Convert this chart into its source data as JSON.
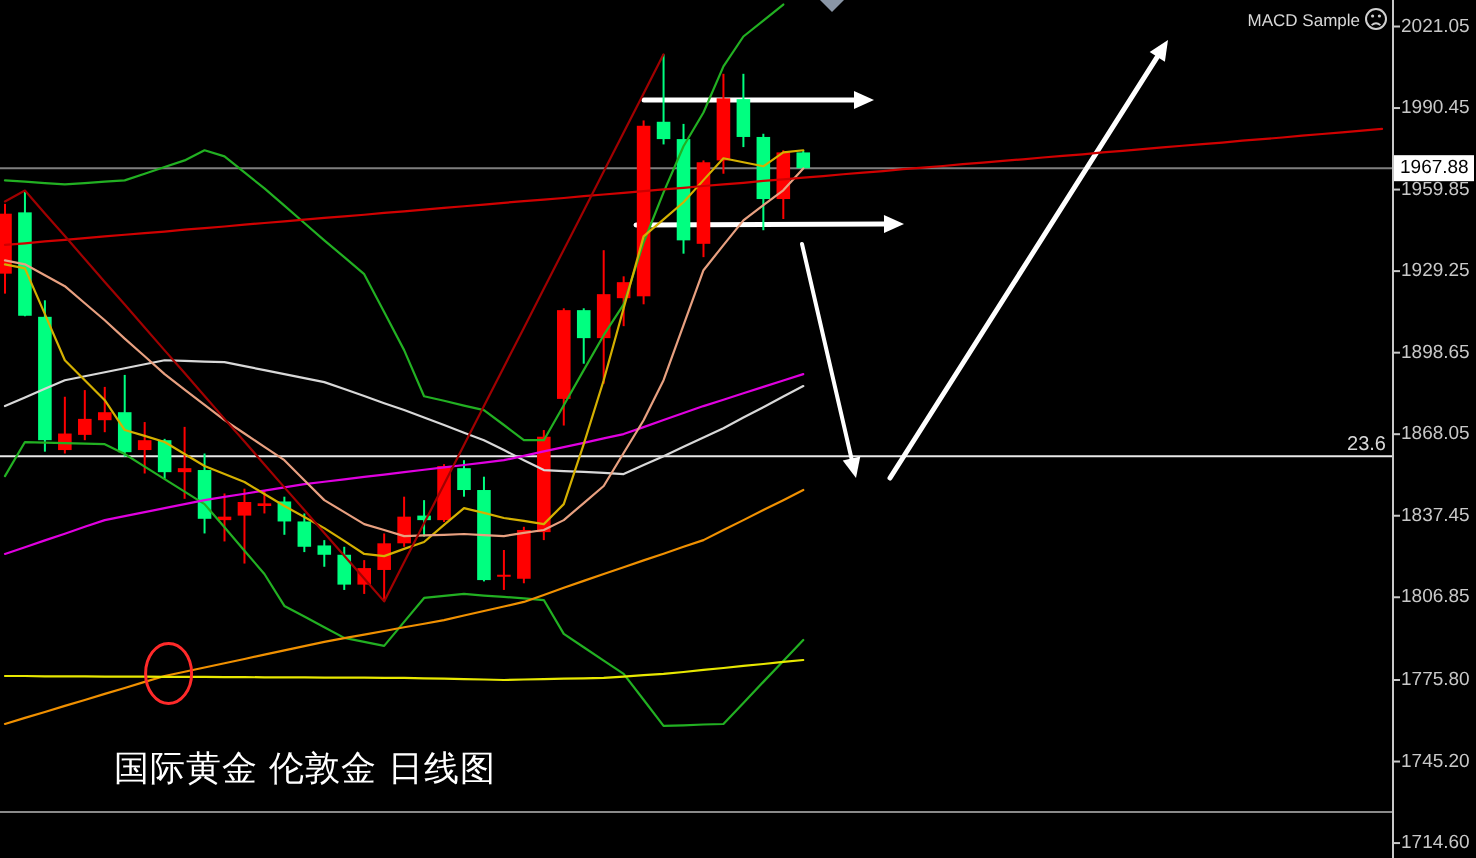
{
  "chart_data": {
    "type": "candlestick",
    "title": "国际黄金 伦敦金 日线图",
    "categories": [
      null,
      null,
      null,
      null,
      null,
      null,
      null,
      null,
      null,
      null,
      null,
      null,
      null,
      null,
      null,
      null,
      null,
      null,
      null,
      null,
      null,
      null,
      null,
      null,
      null,
      null,
      null,
      null,
      null,
      null,
      null,
      null,
      null,
      null,
      null,
      null,
      null,
      null,
      null,
      null,
      null,
      null,
      null,
      null,
      null,
      null,
      null,
      null,
      null,
      null,
      null,
      null,
      null,
      null,
      null,
      null,
      null,
      null,
      null,
      null,
      null,
      null,
      null,
      null,
      null,
      null,
      null,
      null,
      null,
      null
    ],
    "ohlc": [
      [
        1928.3,
        1954.5,
        1920.8,
        1950.8
      ],
      [
        1951.3,
        1959.5,
        1912.3,
        1912.5
      ],
      [
        1912.1,
        1918.3,
        1861.5,
        1865.8
      ],
      [
        1862.1,
        1882.1,
        1860.8,
        1868.3
      ],
      [
        1867.8,
        1884.6,
        1865.8,
        1873.8
      ],
      [
        1873.3,
        1885.8,
        1868.8,
        1876.3
      ],
      [
        1876.3,
        1890.3,
        1859.6,
        1861.3
      ],
      [
        1862.1,
        1872.6,
        1853.3,
        1865.8
      ],
      [
        1865.8,
        1866.3,
        1851.3,
        1853.8
      ],
      [
        1853.8,
        1870.8,
        1843.8,
        1855.3
      ],
      [
        1854.6,
        1860.8,
        1830.8,
        1836.3
      ],
      [
        1835.8,
        1845.8,
        1827.8,
        1837.1
      ],
      [
        1837.5,
        1847.6,
        1819.5,
        1842.6
      ],
      [
        1841.1,
        1847.1,
        1838.3,
        1842.1
      ],
      [
        1842.8,
        1844.6,
        1830.3,
        1835.3
      ],
      [
        1835.3,
        1838.3,
        1823.8,
        1825.8
      ],
      [
        1826.3,
        1828.3,
        1818.3,
        1822.8
      ],
      [
        1822.8,
        1825.8,
        1809.6,
        1811.6
      ],
      [
        1811.6,
        1820.8,
        1808.1,
        1817.8
      ],
      [
        1817.1,
        1830.8,
        1805.3,
        1827.1
      ],
      [
        1827.1,
        1844.6,
        1825.8,
        1837.1
      ],
      [
        1837.5,
        1843.3,
        1829.6,
        1835.8
      ],
      [
        1835.8,
        1856.8,
        1835.1,
        1856.1
      ],
      [
        1855.3,
        1858.3,
        1844.6,
        1847.1
      ],
      [
        1847.1,
        1852.1,
        1812.8,
        1813.3
      ],
      [
        1814.6,
        1824.6,
        1809.6,
        1815.3
      ],
      [
        1813.8,
        1833.3,
        1812.1,
        1832.1
      ],
      [
        1831.3,
        1869.6,
        1828.3,
        1867.1
      ],
      [
        1881.3,
        1915.3,
        1871.3,
        1914.6
      ],
      [
        1914.6,
        1915.3,
        1894.5,
        1904.1
      ],
      [
        1904.1,
        1937.1,
        1887.0,
        1920.6
      ],
      [
        1919.1,
        1927.3,
        1908.6,
        1925.1
      ],
      [
        1919.8,
        1985.8,
        1916.8,
        1983.8
      ],
      [
        1985.3,
        2010.6,
        1976.8,
        1978.8
      ],
      [
        1978.8,
        1984.5,
        1935.8,
        1940.8
      ],
      [
        1939.5,
        1970.8,
        1934.5,
        1970.1
      ],
      [
        1970.8,
        2003.3,
        1965.8,
        1994.1
      ],
      [
        1993.8,
        2003.3,
        1975.8,
        1979.6
      ],
      [
        1979.6,
        1980.8,
        1944.6,
        1956.3
      ],
      [
        1956.3,
        1974.6,
        1948.8,
        1973.8
      ],
      [
        1973.8,
        1974.6,
        1967.8,
        1967.88
      ],
      null,
      null,
      null,
      null,
      null,
      null,
      null,
      null,
      null,
      null,
      null,
      null,
      null,
      null,
      null,
      null,
      null,
      null,
      null,
      null,
      null,
      null,
      null,
      null,
      null,
      null,
      null,
      null,
      null
    ],
    "colors": [
      "#ff0000",
      "#00ff80",
      "#00ff80",
      "#ff0000",
      "#ff0000",
      "#ff0000",
      "#00ff80",
      "#ff0000",
      "#00ff80",
      "#ff0000",
      "#00ff80",
      "#ff0000",
      "#ff0000",
      "#ff0000",
      "#00ff80",
      "#00ff80",
      "#00ff80",
      "#00ff80",
      "#ff0000",
      "#ff0000",
      "#ff0000",
      "#00ff80",
      "#ff0000",
      "#00ff80",
      "#00ff80",
      "#ff0000",
      "#ff0000",
      "#ff0000",
      "#ff0000",
      "#00ff80",
      "#ff0000",
      "#ff0000",
      "#ff0000",
      "#00ff80",
      "#00ff80",
      "#ff0000",
      "#ff0000",
      "#00ff80",
      "#00ff80",
      "#ff0000",
      "#00ff80",
      null,
      null,
      null,
      null,
      null,
      null,
      null,
      null,
      null,
      null,
      null,
      null,
      null,
      null,
      null,
      null,
      null,
      null,
      null,
      null,
      null,
      null,
      null,
      null,
      null,
      null,
      null,
      null,
      null
    ],
    "series": [
      {
        "type": "line",
        "color": "#22b022",
        "values": [
          1963.3,
          1962.8,
          1962.3,
          1961.8,
          1962.3,
          1962.8,
          1963.3,
          1965.8,
          1968.3,
          1970.8,
          1974.6,
          1972.3,
          1966.3,
          1960.3,
          1953.8,
          1947.3,
          1940.8,
          1934.5,
          1928.1,
          1913.9,
          1899.6,
          1882.3,
          1880.6,
          1878.8,
          1877.1,
          1871.5,
          1865.8,
          1865.8,
          1878.9,
          1892.1,
          1905.2,
          1916.8,
          1940.0,
          1958.8,
          1976.1,
          1988.8,
          2006.1,
          2017.3,
          2023.3,
          2029.3,
          null,
          null,
          null,
          null,
          null,
          null,
          null,
          null,
          null,
          null,
          null,
          null,
          null,
          null,
          null,
          null,
          null,
          null,
          null,
          null,
          null,
          null,
          null,
          null,
          null,
          null,
          null,
          null,
          null,
          null
        ]
      },
      {
        "type": "line",
        "color": "#22b022",
        "values": [
          1852.3,
          1865.1,
          1864.9,
          1864.7,
          1864.5,
          1864.3,
          1860.6,
          1855.9,
          1851.2,
          1846.5,
          1841.8,
          1833.1,
          1824.3,
          1815.6,
          1803.6,
          1799.6,
          1795.6,
          1791.6,
          1790.1,
          1788.6,
          1797.6,
          1806.6,
          1807.4,
          1808.1,
          1807.5,
          1807.0,
          1806.4,
          1805.8,
          1793.1,
          1788.1,
          1783.1,
          1778.1,
          1768.4,
          1758.6,
          1758.8,
          1759.1,
          1759.3,
          1767.2,
          1775.1,
          1782.9,
          1790.8,
          null,
          null,
          null,
          null,
          null,
          null,
          null,
          null,
          null,
          null,
          null,
          null,
          null,
          null,
          null,
          null,
          null,
          null,
          null,
          null,
          null,
          null,
          null,
          null,
          null,
          null,
          null,
          null,
          null
        ]
      },
      {
        "type": "line",
        "color": "#d8d8d8",
        "values": [
          1878.6,
          1881.8,
          1885.1,
          1888.3,
          1889.8,
          1891.3,
          1892.8,
          1894.3,
          1895.8,
          1895.6,
          1895.3,
          1895.1,
          1893.6,
          1892.1,
          1890.6,
          1889.1,
          1887.6,
          1885.0,
          1882.4,
          1879.7,
          1877.1,
          1874.3,
          1871.5,
          1868.6,
          1865.8,
          1862.1,
          1858.3,
          1854.6,
          1854.2,
          1853.9,
          1853.5,
          1853.1,
          1856.5,
          1859.8,
          1863.3,
          1866.8,
          1870.3,
          1874.3,
          1878.2,
          1882.2,
          1886.1,
          null,
          null,
          null,
          null,
          null,
          null,
          null,
          null,
          null,
          null,
          null,
          null,
          null,
          null,
          null,
          null,
          null,
          null,
          null,
          null,
          null,
          null,
          null,
          null,
          null,
          null,
          null,
          null,
          null
        ]
      },
      {
        "type": "line",
        "color": "#e000e0",
        "values": [
          1823.1,
          1825.6,
          1828.2,
          1830.7,
          1833.3,
          1835.8,
          1837.3,
          1838.8,
          1840.3,
          1841.8,
          1843.3,
          1844.5,
          1845.7,
          1846.9,
          1848.1,
          1849.3,
          1850.2,
          1851.1,
          1852.0,
          1852.9,
          1853.8,
          1854.7,
          1855.6,
          1856.5,
          1857.4,
          1858.3,
          1859.9,
          1861.6,
          1863.2,
          1864.8,
          1866.5,
          1868.1,
          1870.7,
          1873.4,
          1876.0,
          1878.6,
          1881.0,
          1883.4,
          1885.8,
          1888.2,
          1890.6,
          null,
          null,
          null,
          null,
          null,
          null,
          null,
          null,
          null,
          null,
          null,
          null,
          null,
          null,
          null,
          null,
          null,
          null,
          null,
          null,
          null,
          null,
          null,
          null,
          null,
          null,
          null,
          null,
          null
        ]
      },
      {
        "type": "line",
        "color": "#f09000",
        "values": [
          1759.3,
          1761.6,
          1763.8,
          1766.1,
          1768.3,
          1770.6,
          1772.8,
          1775.1,
          1777.3,
          1778.9,
          1780.5,
          1782.1,
          1783.7,
          1785.3,
          1786.9,
          1788.5,
          1790.1,
          1791.5,
          1792.8,
          1794.2,
          1795.6,
          1796.9,
          1798.3,
          1800.0,
          1801.7,
          1803.4,
          1805.1,
          1807.7,
          1810.4,
          1813.0,
          1815.6,
          1818.1,
          1820.7,
          1823.2,
          1825.8,
          1828.3,
          1832.1,
          1835.8,
          1839.6,
          1843.3,
          1847.1,
          null,
          null,
          null,
          null,
          null,
          null,
          null,
          null,
          null,
          null,
          null,
          null,
          null,
          null,
          null,
          null,
          null,
          null,
          null,
          null,
          null,
          null,
          null,
          null,
          null,
          null,
          null,
          null,
          null
        ]
      },
      {
        "type": "line",
        "color": "#e8e800",
        "values": [
          1777.3,
          1777.3,
          1777.2,
          1777.2,
          1777.2,
          1777.1,
          1777.1,
          1777.1,
          1777.0,
          1777.0,
          1777.0,
          1776.9,
          1776.9,
          1776.8,
          1776.8,
          1776.8,
          1776.7,
          1776.7,
          1776.7,
          1776.6,
          1776.6,
          1776.4,
          1776.3,
          1776.1,
          1776.0,
          1775.8,
          1776.0,
          1776.1,
          1776.3,
          1776.4,
          1776.6,
          1777.1,
          1777.6,
          1778.1,
          1778.8,
          1779.6,
          1780.3,
          1781.1,
          1781.8,
          1782.6,
          1783.3,
          null,
          null,
          null,
          null,
          null,
          null,
          null,
          null,
          null,
          null,
          null,
          null,
          null,
          null,
          null,
          null,
          null,
          null,
          null,
          null,
          null,
          null,
          null,
          null,
          null,
          null,
          null,
          null,
          null
        ]
      },
      {
        "type": "line",
        "color": "#d4b000",
        "values": [
          1931.8,
          1930.3,
          1913.1,
          1895.8,
          1888.3,
          1880.8,
          1869.6,
          1867.4,
          1865.1,
          1860.6,
          1856.1,
          1853.1,
          1850.1,
          1845.6,
          1841.1,
          1837.0,
          1832.8,
          1828.0,
          1823.1,
          1822.3,
          1825.0,
          1827.6,
          1834.0,
          1840.3,
          1838.5,
          1836.6,
          1835.5,
          1834.3,
          1841.8,
          1864.3,
          1888.3,
          1915.3,
          1942.3,
          1948.7,
          1955.1,
          1963.4,
          1971.6,
          1970.1,
          1968.6,
          1973.8,
          1974.6,
          null,
          null,
          null,
          null,
          null,
          null,
          null,
          null,
          null,
          null,
          null,
          null,
          null,
          null,
          null,
          null,
          null,
          null,
          null,
          null,
          null,
          null,
          null,
          null,
          null,
          null,
          null,
          null,
          null
        ]
      },
      {
        "type": "line",
        "color": "#e8a080",
        "values": [
          1933.3,
          1931.8,
          1927.7,
          1923.6,
          1917.2,
          1910.8,
          1903.9,
          1897.3,
          1890.6,
          1884.8,
          1879.1,
          1873.3,
          1868.3,
          1863.3,
          1858.3,
          1850.8,
          1843.3,
          1838.8,
          1834.3,
          1832.1,
          1829.8,
          1830.1,
          1830.3,
          1830.6,
          1830.2,
          1829.8,
          1831.0,
          1832.1,
          1835.8,
          1842.2,
          1848.6,
          1861.0,
          1873.3,
          1888.3,
          1909.0,
          1929.6,
          1939.0,
          1948.3,
          1954.0,
          1959.6,
          1967.8,
          null,
          null,
          null,
          null,
          null,
          null,
          null,
          null,
          null,
          null,
          null,
          null,
          null,
          null,
          null,
          null,
          null,
          null,
          null,
          null,
          null,
          null,
          null,
          null,
          null,
          null,
          null,
          null,
          null
        ]
      },
      {
        "type": "line",
        "color": "#d00000",
        "values": [
          1939.1,
          1939.7,
          1940.4,
          1941.0,
          1941.6,
          1942.3,
          1942.9,
          1943.5,
          1944.1,
          1944.8,
          1945.4,
          1946.0,
          1946.7,
          1947.3,
          1947.9,
          1948.6,
          1949.2,
          1949.8,
          1950.4,
          1951.1,
          1951.7,
          1952.3,
          1953.0,
          1953.6,
          1954.2,
          1954.9,
          1955.5,
          1956.1,
          1956.7,
          1957.4,
          1958.0,
          1958.6,
          1959.3,
          1959.9,
          1960.5,
          1961.2,
          1961.8,
          1962.4,
          1963.1,
          1963.7,
          1964.3,
          1964.9,
          1965.6,
          1966.2,
          1966.8,
          1967.5,
          1968.1,
          1968.7,
          1969.4,
          1970.0,
          1970.6,
          1971.2,
          1971.9,
          1972.5,
          1973.1,
          1973.8,
          1974.4,
          1975.0,
          1975.7,
          1976.3,
          1976.9,
          1977.5,
          1978.2,
          1978.8,
          1979.4,
          1980.1,
          1980.7,
          1981.3,
          1982.0,
          1982.6
        ]
      },
      {
        "type": "line",
        "color": "#a00000",
        "values": [
          1955.4,
          1959.5,
          1950.9,
          1942.4,
          1933.8,
          1925.2,
          1916.7,
          1908.1,
          1899.5,
          1891.0,
          1882.4,
          1873.8,
          1865.3,
          1856.7,
          1848.1,
          1839.6,
          1831.0,
          1822.4,
          1813.9,
          1805.3,
          1820.0,
          1834.6,
          1849.3,
          1864.0,
          1878.6,
          1893.3,
          1907.9,
          1922.6,
          1937.3,
          1951.9,
          1966.6,
          1981.3,
          1995.9,
          2010.6,
          null,
          null,
          null,
          null,
          null,
          null,
          null,
          null,
          null,
          null,
          null,
          null,
          null,
          null,
          null,
          null,
          null,
          null,
          null,
          null,
          null,
          null,
          null,
          null,
          null,
          null,
          null,
          null,
          null,
          null,
          null,
          null,
          null,
          null,
          null,
          null
        ]
      }
    ],
    "ylim": [
      1709,
      2031
    ],
    "yticks": [
      2021.05,
      1990.45,
      1959.85,
      1929.25,
      1898.65,
      1868.05,
      1837.45,
      1806.85,
      {
        "value": 1775.8,
        "label": "1775.80"
      },
      {
        "value": 1745.2,
        "label": "1745.20"
      },
      {
        "value": 1714.6,
        "label": "1714.60"
      }
    ],
    "tick_labels": "y",
    "ref_lines": [
      {
        "axis": "y",
        "value": 1967.88,
        "label": "1967.88",
        "color": "#7f7f7f"
      },
      {
        "axis": "y",
        "value": 1859.8,
        "color": "#e8e8e8"
      },
      {
        "axis": "y",
        "value": 1726.3,
        "color": "#8a8a8a"
      }
    ],
    "annotations": [
      "MACD Sample",
      {
        "text": "23.6",
        "y": 1859.8
      }
    ]
  }
}
